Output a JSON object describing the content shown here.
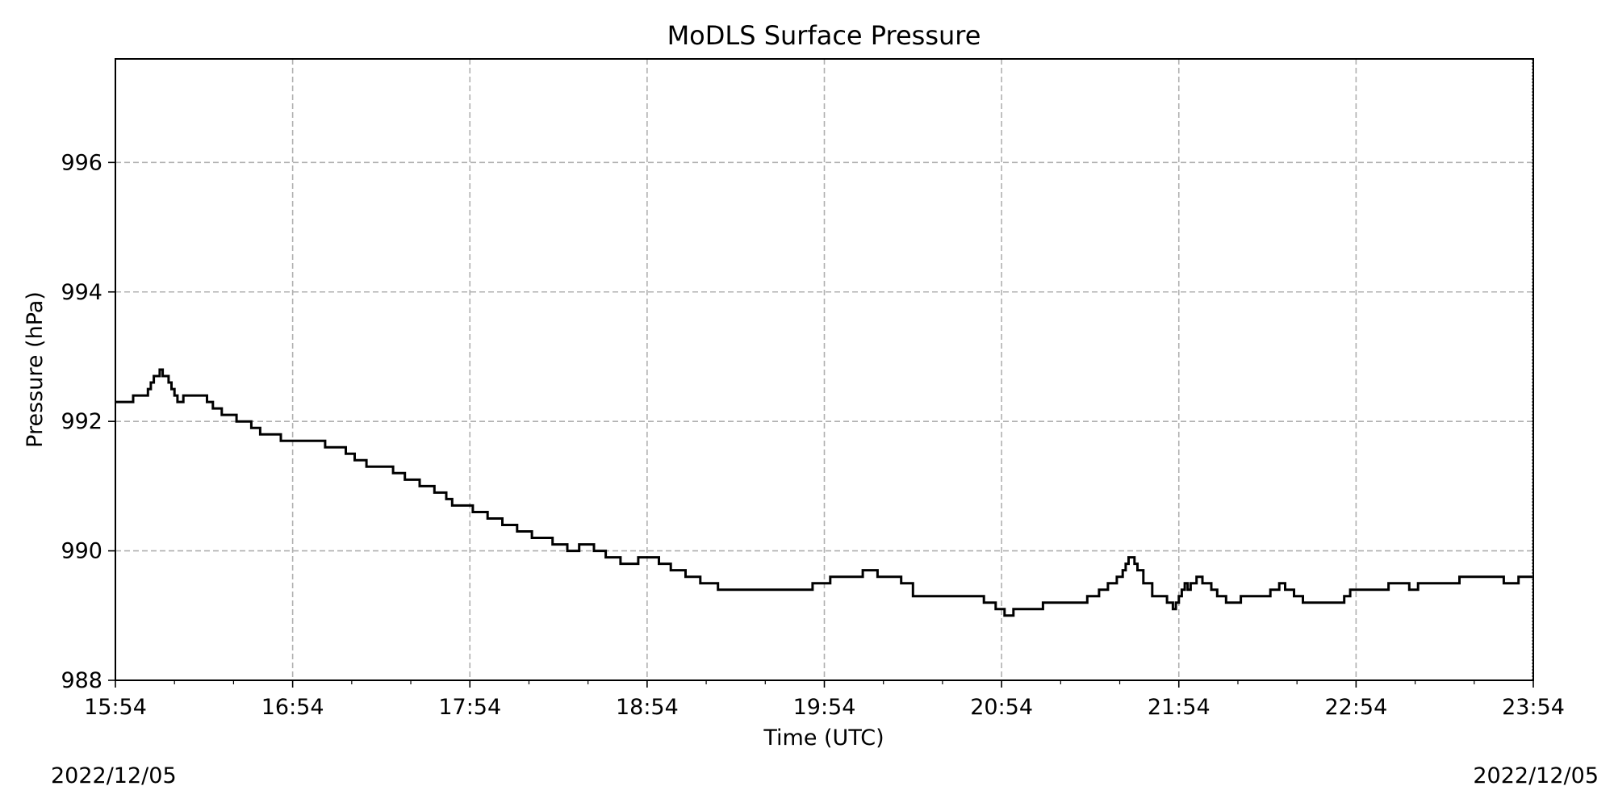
{
  "chart_data": {
    "type": "line",
    "title": "MoDLS Surface Pressure",
    "xlabel": "Time (UTC)",
    "ylabel": "Pressure (hPa)",
    "x_range": [
      "2022-12-05T15:54",
      "2022-12-05T23:54"
    ],
    "ylim": [
      988,
      997.6
    ],
    "grid": true,
    "x_ticks": [
      "15:54",
      "16:54",
      "17:54",
      "18:54",
      "19:54",
      "20:54",
      "21:54",
      "22:54",
      "23:54"
    ],
    "y_ticks": [
      988,
      990,
      992,
      994,
      996
    ],
    "date_left": "2022/12/05",
    "date_right": "2022/12/05",
    "line_color": "#000000",
    "grid_color": "#b0b0b0",
    "step": true,
    "series": [
      {
        "x": [
          "15:54",
          "16:00",
          "16:05",
          "16:06",
          "16:07",
          "16:08",
          "16:09",
          "16:10",
          "16:12",
          "16:13",
          "16:14",
          "16:15",
          "16:16",
          "16:17",
          "16:18",
          "16:19",
          "16:22",
          "16:25",
          "16:26",
          "16:27",
          "16:30",
          "16:35",
          "16:40",
          "16:43",
          "16:47",
          "16:50",
          "16:54",
          "16:58",
          "17:05",
          "17:12",
          "17:15",
          "17:19",
          "17:23",
          "17:28",
          "17:32",
          "17:37",
          "17:42",
          "17:46",
          "17:48",
          "17:52",
          "17:55",
          "18:00",
          "18:05",
          "18:10",
          "18:15",
          "18:22",
          "18:27",
          "18:31",
          "18:36",
          "18:40",
          "18:45",
          "18:51",
          "18:58",
          "19:02",
          "19:07",
          "19:12",
          "19:18",
          "19:22",
          "19:31",
          "19:48",
          "19:50",
          "19:56",
          "20:02",
          "20:07",
          "20:12",
          "20:20",
          "20:24",
          "20:31",
          "20:40",
          "20:48",
          "20:52",
          "20:55",
          "20:58",
          "21:00",
          "21:08",
          "21:12",
          "21:18",
          "21:23",
          "21:27",
          "21:30",
          "21:33",
          "21:35",
          "21:36",
          "21:37",
          "21:38",
          "21:39",
          "21:40",
          "21:42",
          "21:45",
          "21:50",
          "21:52",
          "21:53",
          "21:54",
          "21:55",
          "21:56",
          "21:57",
          "21:58",
          "21:59",
          "22:00",
          "22:02",
          "22:03",
          "22:05",
          "22:07",
          "22:10",
          "22:15",
          "22:20",
          "22:25",
          "22:28",
          "22:30",
          "22:33",
          "22:36",
          "22:45",
          "22:50",
          "22:52",
          "22:55",
          "23:05",
          "23:12",
          "23:15",
          "23:20",
          "23:29",
          "23:33",
          "23:40",
          "23:44",
          "23:49",
          "23:54"
        ],
        "values": [
          992.3,
          992.4,
          992.5,
          992.6,
          992.7,
          992.7,
          992.8,
          992.7,
          992.6,
          992.5,
          992.4,
          992.3,
          992.3,
          992.4,
          992.4,
          992.4,
          992.4,
          992.3,
          992.3,
          992.2,
          992.1,
          992.0,
          991.9,
          991.8,
          991.8,
          991.7,
          991.7,
          991.7,
          991.6,
          991.5,
          991.4,
          991.3,
          991.3,
          991.2,
          991.1,
          991.0,
          990.9,
          990.8,
          990.7,
          990.7,
          990.6,
          990.5,
          990.4,
          990.3,
          990.2,
          990.1,
          990.0,
          990.1,
          990.0,
          989.9,
          989.8,
          989.9,
          989.8,
          989.7,
          989.6,
          989.5,
          989.4,
          989.4,
          989.4,
          989.4,
          989.5,
          989.6,
          989.6,
          989.7,
          989.6,
          989.5,
          989.3,
          989.3,
          989.3,
          989.2,
          989.1,
          989.0,
          989.1,
          989.1,
          989.2,
          989.2,
          989.2,
          989.3,
          989.4,
          989.5,
          989.6,
          989.7,
          989.8,
          989.9,
          989.9,
          989.8,
          989.7,
          989.5,
          989.3,
          989.2,
          989.1,
          989.2,
          989.3,
          989.4,
          989.5,
          989.4,
          989.5,
          989.5,
          989.6,
          989.5,
          989.5,
          989.4,
          989.3,
          989.2,
          989.3,
          989.3,
          989.4,
          989.5,
          989.4,
          989.3,
          989.2,
          989.2,
          989.3,
          989.4,
          989.4,
          989.5,
          989.4,
          989.5,
          989.5,
          989.6,
          989.6,
          989.6,
          989.5,
          989.6,
          989.6
        ]
      }
    ]
  }
}
